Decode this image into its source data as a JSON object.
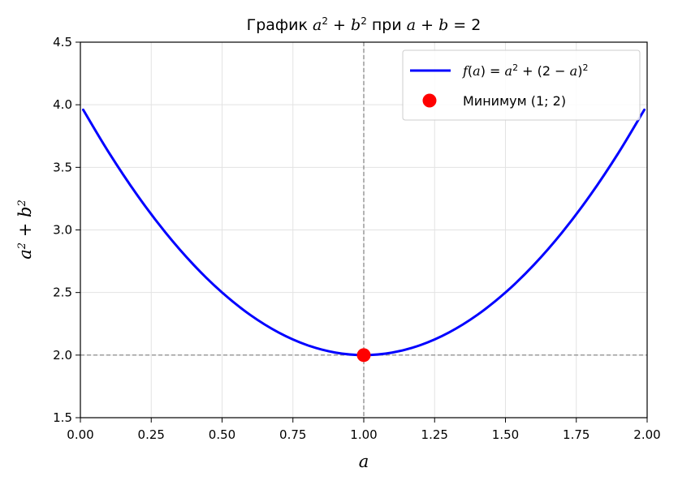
{
  "chart_data": {
    "type": "line",
    "title": "График a² + b² при a + b = 2",
    "xlabel": "a",
    "ylabel": "a² + b²",
    "xlim": [
      0.0,
      2.0
    ],
    "ylim": [
      1.5,
      4.5
    ],
    "xticks": [
      "0.00",
      "0.25",
      "0.50",
      "0.75",
      "1.00",
      "1.25",
      "1.50",
      "1.75",
      "2.00"
    ],
    "yticks": [
      "1.5",
      "2.0",
      "2.5",
      "3.0",
      "3.5",
      "4.0",
      "4.5"
    ],
    "grid": true,
    "legend_position": "top-right",
    "series": [
      {
        "name": "f(a) = a² + (2 − a)²",
        "color": "#0000ff",
        "x": [
          0.01,
          0.1,
          0.2,
          0.3,
          0.4,
          0.5,
          0.6,
          0.7,
          0.8,
          0.9,
          1.0,
          1.1,
          1.2,
          1.3,
          1.4,
          1.5,
          1.6,
          1.7,
          1.8,
          1.9,
          1.99
        ],
        "y": [
          3.96,
          3.62,
          3.28,
          2.98,
          2.72,
          2.5,
          2.32,
          2.18,
          2.08,
          2.02,
          2.0,
          2.02,
          2.08,
          2.18,
          2.32,
          2.5,
          2.72,
          2.98,
          3.28,
          3.62,
          3.96
        ]
      },
      {
        "name": "Минимум (1; 2)",
        "type": "scatter",
        "color": "#ff0000",
        "x": [
          1.0
        ],
        "y": [
          2.0
        ]
      }
    ],
    "reference_lines": [
      {
        "orientation": "vertical",
        "value": 1.0,
        "style": "dashed",
        "color": "#808080"
      },
      {
        "orientation": "horizontal",
        "value": 2.0,
        "style": "dashed",
        "color": "#808080"
      }
    ]
  }
}
